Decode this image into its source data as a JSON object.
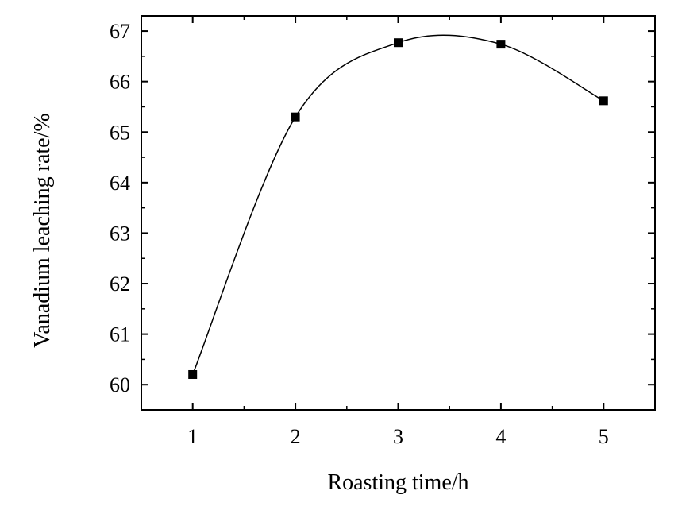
{
  "chart_data": {
    "type": "line",
    "smooth": true,
    "xlabel": "Roasting time/h",
    "ylabel": "Vanadium leaching rate/%",
    "xlim": [
      0.5,
      5.5
    ],
    "ylim": [
      59.5,
      67.3
    ],
    "x_ticks": [
      1,
      2,
      3,
      4,
      5
    ],
    "y_ticks": [
      60,
      61,
      62,
      63,
      64,
      65,
      66,
      67
    ],
    "grid": false,
    "marker": "square",
    "series": [
      {
        "x": [
          1,
          2,
          3,
          4,
          5
        ],
        "values": [
          60.2,
          65.3,
          66.77,
          66.74,
          65.62
        ]
      }
    ],
    "colors": {
      "line": "#000000",
      "marker": "#000000",
      "axis": "#000000"
    }
  }
}
